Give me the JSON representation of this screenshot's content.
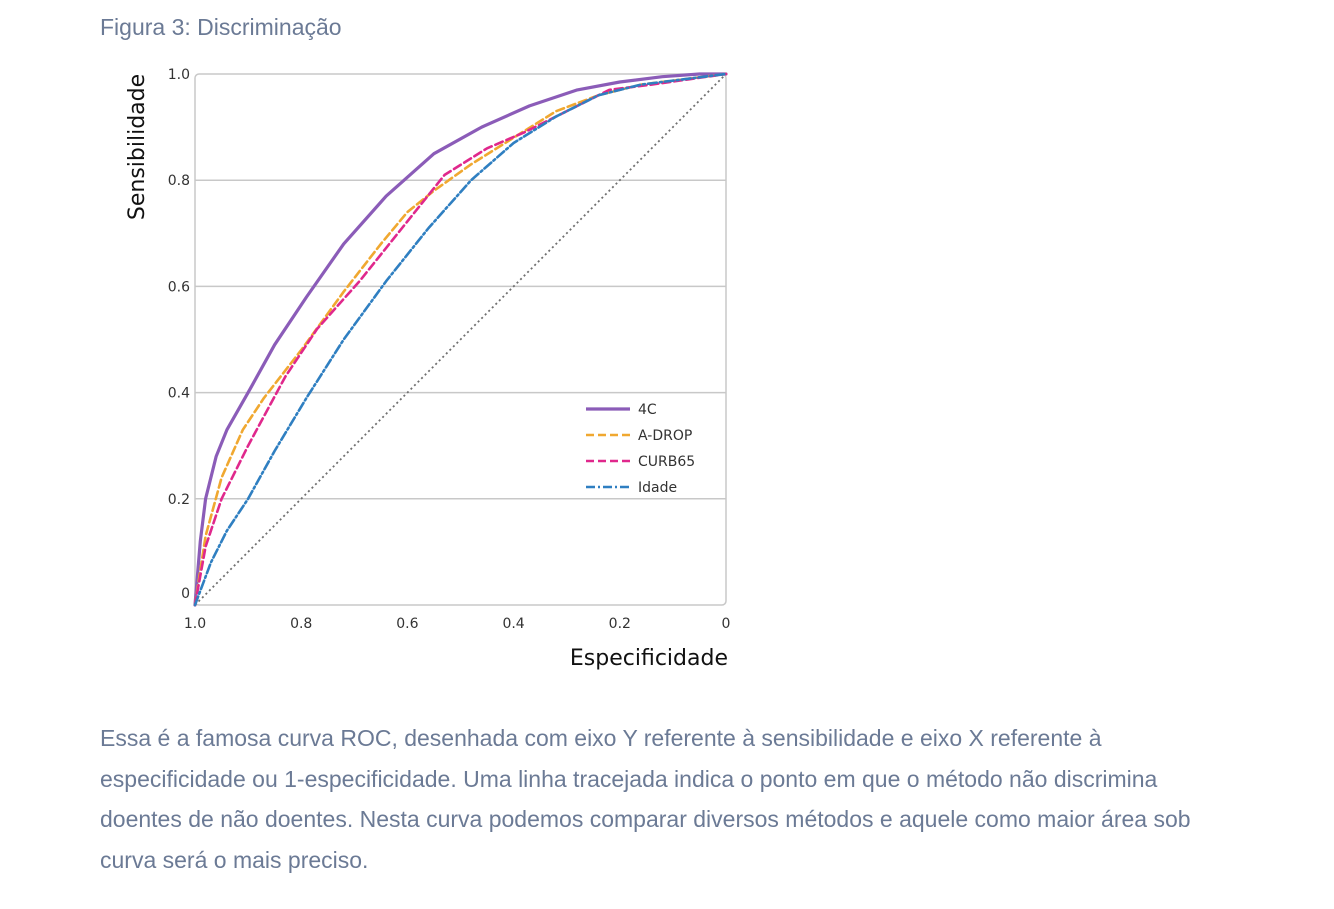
{
  "figure_title": "Figura 3: Discriminação",
  "caption_lines": [
    "Essa é a famosa curva ROC, desenhada com eixo Y referente à sensibilidade e eixo X referente à",
    "especificidade ou 1-especificidade. Uma linha tracejada indica o ponto em que o método não discrimina",
    "doentes de não doentes. Nesta curva podemos comparar diversos métodos e aquele como maior área sob",
    "curva será o mais preciso."
  ],
  "chart_data": {
    "type": "line",
    "title": "",
    "xlabel": "Especificidade",
    "ylabel": "Sensibilidade",
    "xlim": [
      1.0,
      0
    ],
    "ylim": [
      0,
      1.0
    ],
    "x_reversed": true,
    "xticks": [
      "1.0",
      "0.8",
      "0.6",
      "0.4",
      "0.2",
      "0"
    ],
    "yticks": [
      "0",
      "0.2",
      "0.4",
      "0.6",
      "0.8",
      "1.0"
    ],
    "grid": "horizontal",
    "legend_position": "bottom-right",
    "reference_line": {
      "style": "dotted",
      "color": "#707070",
      "from": [
        1.0,
        0
      ],
      "to": [
        0,
        1.0
      ]
    },
    "series": [
      {
        "name": "4C",
        "color": "#8b5cb8",
        "style": "solid",
        "x": [
          1.0,
          0.99,
          0.98,
          0.96,
          0.94,
          0.9,
          0.85,
          0.79,
          0.72,
          0.64,
          0.55,
          0.46,
          0.37,
          0.28,
          0.2,
          0.12,
          0.05,
          0
        ],
        "y": [
          0,
          0.12,
          0.2,
          0.28,
          0.33,
          0.4,
          0.49,
          0.58,
          0.68,
          0.77,
          0.85,
          0.9,
          0.94,
          0.97,
          0.985,
          0.995,
          1.0,
          1.0
        ]
      },
      {
        "name": "A-DROP",
        "color": "#f0a830",
        "style": "dashed",
        "x": [
          1.0,
          0.98,
          0.95,
          0.91,
          0.87,
          0.8,
          0.72,
          0.65,
          0.6,
          0.55,
          0.48,
          0.4,
          0.32,
          0.24,
          0.16,
          0.08,
          0
        ],
        "y": [
          0,
          0.13,
          0.24,
          0.33,
          0.39,
          0.48,
          0.59,
          0.68,
          0.74,
          0.78,
          0.83,
          0.88,
          0.93,
          0.96,
          0.98,
          0.99,
          1.0
        ]
      },
      {
        "name": "CURB65",
        "color": "#e0288c",
        "style": "dashed",
        "x": [
          1.0,
          0.98,
          0.95,
          0.9,
          0.83,
          0.77,
          0.69,
          0.61,
          0.53,
          0.45,
          0.38,
          0.3,
          0.22,
          0.14,
          0.07,
          0
        ],
        "y": [
          0,
          0.11,
          0.2,
          0.3,
          0.43,
          0.52,
          0.61,
          0.71,
          0.81,
          0.86,
          0.89,
          0.93,
          0.97,
          0.98,
          0.99,
          1.0
        ]
      },
      {
        "name": "Idade",
        "color": "#2f7fc1",
        "style": "dashdot",
        "x": [
          1.0,
          0.97,
          0.94,
          0.9,
          0.85,
          0.79,
          0.72,
          0.64,
          0.56,
          0.48,
          0.4,
          0.32,
          0.24,
          0.16,
          0.08,
          0
        ],
        "y": [
          0,
          0.08,
          0.14,
          0.2,
          0.29,
          0.39,
          0.5,
          0.61,
          0.71,
          0.8,
          0.87,
          0.92,
          0.96,
          0.98,
          0.99,
          1.0
        ]
      }
    ]
  }
}
